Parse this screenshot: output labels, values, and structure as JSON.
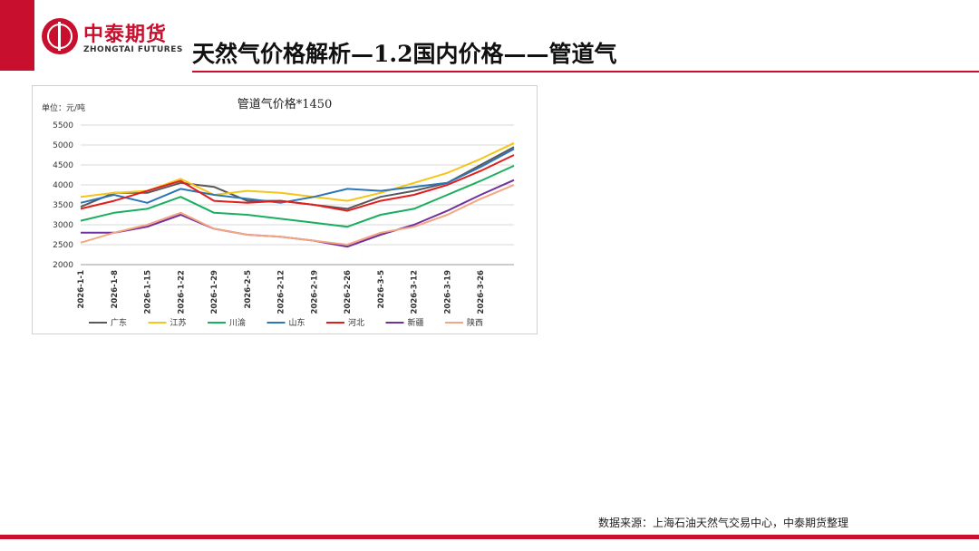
{
  "header": {
    "logo_cn": "中泰期货",
    "logo_en": "ZHONGTAI FUTURES",
    "title": "天然气价格解析—1.2国内价格——管道气"
  },
  "footer": {
    "source": "数据来源：上海石油天然气交易中心，中泰期货整理"
  },
  "colors": {
    "brand": "#c8102e"
  },
  "chart_data": {
    "type": "line",
    "title": "管道气价格*1450",
    "unit_label": "单位：元/吨",
    "ylim": [
      2000,
      5500
    ],
    "yticks": [
      2000,
      2500,
      3000,
      3500,
      4000,
      4500,
      5000,
      5500
    ],
    "categories": [
      "2026-1-1",
      "2026-1-8",
      "2026-1-15",
      "2026-1-22",
      "2026-1-29",
      "2026-2-5",
      "2026-2-12",
      "2026-2-19",
      "2026-2-26",
      "2026-3-5",
      "2026-3-12",
      "2026-3-19",
      "2026-3-26",
      ""
    ],
    "xtick_labels": [
      "2026-1-1",
      "2026-1-8",
      "2026-1-15",
      "2026-1-22",
      "2026-1-29",
      "2026-2-5",
      "2026-2-12",
      "2026-2-19",
      "2026-2-26",
      "2026-3-5",
      "2026-3-12",
      "2026-3-19",
      "2026-3-26"
    ],
    "grid": true,
    "legend_position": "bottom",
    "series": [
      {
        "name": "广东",
        "color": "#595959",
        "values": [
          3450,
          3800,
          3800,
          4050,
          3950,
          3600,
          3600,
          3500,
          3400,
          3700,
          3850,
          4050,
          4500,
          4950
        ]
      },
      {
        "name": "江苏",
        "color": "#f5c518",
        "values": [
          3700,
          3800,
          3850,
          4150,
          3750,
          3850,
          3800,
          3700,
          3600,
          3800,
          4050,
          4300,
          4650,
          5050
        ]
      },
      {
        "name": "川渝",
        "color": "#1aae5e",
        "values": [
          3100,
          3300,
          3400,
          3700,
          3300,
          3250,
          3150,
          3050,
          2950,
          3250,
          3400,
          3750,
          4100,
          4480
        ]
      },
      {
        "name": "山东",
        "color": "#2e75b6",
        "values": [
          3550,
          3750,
          3550,
          3900,
          3750,
          3650,
          3550,
          3700,
          3900,
          3850,
          3950,
          4050,
          4450,
          4900
        ]
      },
      {
        "name": "河北",
        "color": "#e01e1e",
        "values": [
          3400,
          3600,
          3850,
          4100,
          3600,
          3550,
          3600,
          3500,
          3350,
          3600,
          3750,
          4000,
          4350,
          4750
        ]
      },
      {
        "name": "新疆",
        "color": "#7030a0",
        "values": [
          2800,
          2800,
          2950,
          3250,
          2900,
          2750,
          2700,
          2600,
          2450,
          2750,
          3000,
          3350,
          3750,
          4120
        ]
      },
      {
        "name": "陕西",
        "color": "#f4a582",
        "values": [
          2550,
          2800,
          3000,
          3300,
          2900,
          2750,
          2700,
          2600,
          2500,
          2800,
          2950,
          3250,
          3650,
          4000
        ]
      }
    ]
  }
}
